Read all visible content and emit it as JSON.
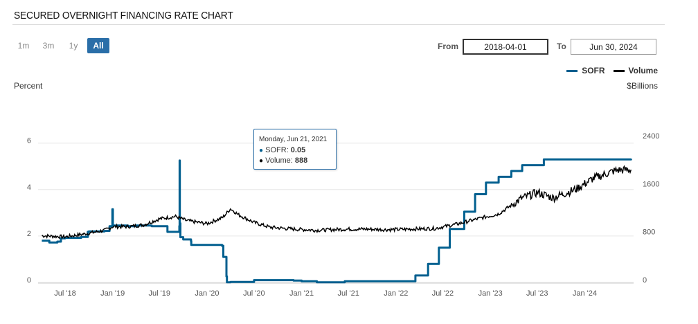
{
  "header": {
    "title": "SECURED OVERNIGHT FINANCING RATE CHART"
  },
  "range_buttons": [
    {
      "label": "1m",
      "active": false
    },
    {
      "label": "3m",
      "active": false
    },
    {
      "label": "1y",
      "active": false
    },
    {
      "label": "All",
      "active": true
    }
  ],
  "date_range": {
    "from_label": "From",
    "from_value": "2018-04-01",
    "to_label": "To",
    "to_value": "Jun 30, 2024"
  },
  "legend": [
    {
      "label": "SOFR",
      "color": "#005f8f"
    },
    {
      "label": "Volume",
      "color": "#000000"
    }
  ],
  "tooltip": {
    "date": "Monday, Jun 21, 2021",
    "sofr_label": "SOFR:",
    "sofr_value": "0.05",
    "volume_label": "Volume:",
    "volume_value": "888"
  },
  "chart_data": {
    "type": "line",
    "left_axis": {
      "title": "Percent",
      "ticks": [
        "0",
        "2",
        "4",
        "6"
      ],
      "range": [
        0,
        6.2
      ]
    },
    "right_axis": {
      "title": "$Billions",
      "ticks": [
        "0",
        "800",
        "1600",
        "2400"
      ],
      "range": [
        0,
        2400
      ]
    },
    "x_ticks": [
      "Jul '18",
      "Jan '19",
      "Jul '19",
      "Jan '20",
      "Jul '20",
      "Jan '21",
      "Jul '21",
      "Jan '22",
      "Jul '22",
      "Jan '23",
      "Jul '23",
      "Jan '24"
    ],
    "x_range": [
      "2018-04-01",
      "2024-06-30"
    ],
    "grid": true,
    "series": [
      {
        "name": "SOFR",
        "axis": "left",
        "color": "#005f8f",
        "points": [
          [
            "2018-04-02",
            1.8
          ],
          [
            "2018-05-01",
            1.72
          ],
          [
            "2018-06-01",
            1.76
          ],
          [
            "2018-06-15",
            1.9
          ],
          [
            "2018-07-01",
            1.92
          ],
          [
            "2018-09-01",
            1.96
          ],
          [
            "2018-09-27",
            2.18
          ],
          [
            "2018-10-01",
            2.2
          ],
          [
            "2018-12-01",
            2.22
          ],
          [
            "2018-12-20",
            2.42
          ],
          [
            "2018-12-31",
            3.15
          ],
          [
            "2019-01-02",
            2.45
          ],
          [
            "2019-03-01",
            2.42
          ],
          [
            "2019-04-01",
            2.45
          ],
          [
            "2019-06-01",
            2.42
          ],
          [
            "2019-08-01",
            2.18
          ],
          [
            "2019-09-16",
            2.43
          ],
          [
            "2019-09-17",
            5.25
          ],
          [
            "2019-09-18",
            2.55
          ],
          [
            "2019-09-20",
            1.95
          ],
          [
            "2019-10-01",
            1.85
          ],
          [
            "2019-10-31",
            1.78
          ],
          [
            "2019-11-01",
            1.62
          ],
          [
            "2020-02-28",
            1.58
          ],
          [
            "2020-03-04",
            1.1
          ],
          [
            "2020-03-16",
            0.26
          ],
          [
            "2020-03-18",
            0.01
          ],
          [
            "2020-04-01",
            0.02
          ],
          [
            "2020-07-01",
            0.1
          ],
          [
            "2020-12-01",
            0.08
          ],
          [
            "2021-01-01",
            0.05
          ],
          [
            "2021-03-01",
            0.01
          ],
          [
            "2021-06-17",
            0.05
          ],
          [
            "2021-12-31",
            0.05
          ],
          [
            "2022-03-17",
            0.3
          ],
          [
            "2022-05-05",
            0.8
          ],
          [
            "2022-06-16",
            1.5
          ],
          [
            "2022-07-28",
            2.3
          ],
          [
            "2022-09-22",
            3.05
          ],
          [
            "2022-11-03",
            3.8
          ],
          [
            "2022-12-15",
            4.3
          ],
          [
            "2023-02-02",
            4.55
          ],
          [
            "2023-03-23",
            4.8
          ],
          [
            "2023-05-04",
            5.05
          ],
          [
            "2023-07-27",
            5.3
          ],
          [
            "2024-06-28",
            5.33
          ]
        ]
      },
      {
        "name": "Volume",
        "axis": "right",
        "color": "#000000",
        "points": [
          [
            "2018-04-02",
            780
          ],
          [
            "2018-07-01",
            760
          ],
          [
            "2018-10-01",
            820
          ],
          [
            "2018-12-01",
            870
          ],
          [
            "2019-01-01",
            930
          ],
          [
            "2019-03-01",
            930
          ],
          [
            "2019-05-01",
            960
          ],
          [
            "2019-07-01",
            1060
          ],
          [
            "2019-09-01",
            1100
          ],
          [
            "2019-10-15",
            1030
          ],
          [
            "2020-01-01",
            980
          ],
          [
            "2020-03-01",
            1080
          ],
          [
            "2020-04-01",
            1230
          ],
          [
            "2020-05-01",
            1130
          ],
          [
            "2020-07-01",
            1000
          ],
          [
            "2020-09-01",
            920
          ],
          [
            "2020-12-01",
            890
          ],
          [
            "2021-03-01",
            870
          ],
          [
            "2021-06-21",
            888
          ],
          [
            "2021-09-01",
            890
          ],
          [
            "2021-12-01",
            880
          ],
          [
            "2022-03-01",
            890
          ],
          [
            "2022-06-01",
            900
          ],
          [
            "2022-09-01",
            980
          ],
          [
            "2022-12-01",
            1080
          ],
          [
            "2023-02-01",
            1140
          ],
          [
            "2023-05-01",
            1400
          ],
          [
            "2023-07-01",
            1500
          ],
          [
            "2023-09-01",
            1410
          ],
          [
            "2023-12-01",
            1560
          ],
          [
            "2024-02-01",
            1730
          ],
          [
            "2024-05-01",
            1870
          ],
          [
            "2024-06-28",
            1880
          ]
        ]
      }
    ]
  }
}
